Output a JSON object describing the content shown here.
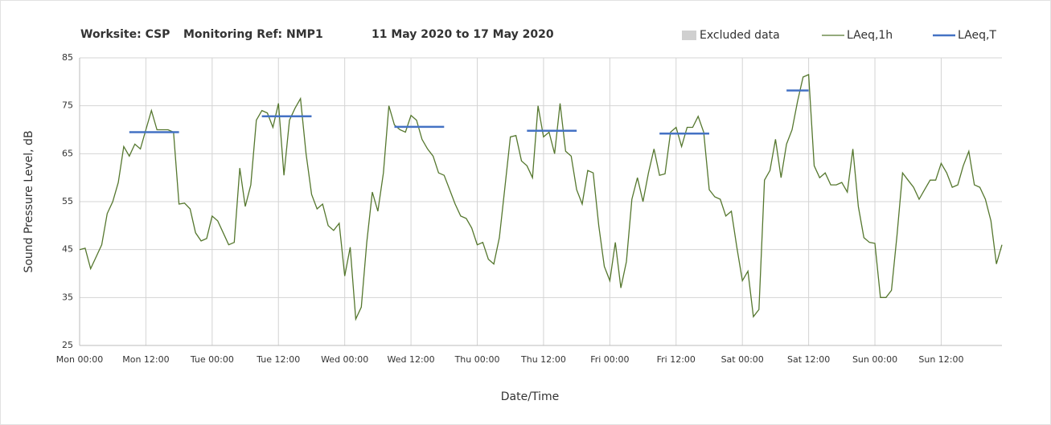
{
  "chart_data": {
    "type": "line",
    "title": [
      "Worksite: CSP",
      "Monitoring Ref: NMP1",
      "11 May 2020 to 17 May 2020"
    ],
    "xlabel": "Date/Time",
    "ylabel": "Sound Pressure Level, dB",
    "excluded": {
      "name": "Excluded data",
      "color": "#d0d0d0"
    },
    "x": [
      0,
      1,
      2,
      3,
      4,
      5,
      6,
      7,
      8,
      9,
      10,
      11,
      12,
      13,
      14,
      15,
      16,
      17,
      18,
      19,
      20,
      21,
      22,
      23,
      24,
      25,
      26,
      27,
      28,
      29,
      30,
      31,
      32,
      33,
      34,
      35,
      36,
      37,
      38,
      39,
      40,
      41,
      42,
      43,
      44,
      45,
      46,
      47,
      48,
      49,
      50,
      51,
      52,
      53,
      54,
      55,
      56,
      57,
      58,
      59,
      60,
      61,
      62,
      63,
      64,
      65,
      66,
      67,
      68,
      69,
      70,
      71,
      72,
      73,
      74,
      75,
      76,
      77,
      78,
      79,
      80,
      81,
      82,
      83,
      84,
      85,
      86,
      87,
      88,
      89,
      90,
      91,
      92,
      93,
      94,
      95,
      96,
      97,
      98,
      99,
      100,
      101,
      102,
      103,
      104,
      105,
      106,
      107,
      108,
      109,
      110,
      111,
      112,
      113,
      114,
      115,
      116,
      117,
      118,
      119,
      120,
      121,
      122,
      123,
      124,
      125,
      126,
      127,
      128,
      129,
      130,
      131,
      132,
      133,
      134,
      135,
      136,
      137,
      138,
      139,
      140,
      141,
      142,
      143,
      144,
      145,
      146,
      147,
      148,
      149,
      150,
      151,
      152,
      153,
      154,
      155,
      156,
      157,
      158,
      159,
      160,
      161,
      162,
      163,
      164,
      165,
      166,
      167
    ],
    "series": [
      {
        "name": "LAeq,1h",
        "color": "#55772e",
        "values": [
          45,
          45.3,
          41,
          43.5,
          46,
          52.5,
          55,
          59,
          66.5,
          64.5,
          67,
          66,
          70,
          74,
          70,
          70,
          70,
          69.5,
          54.5,
          54.7,
          53.5,
          48.5,
          46.8,
          47.3,
          52,
          51,
          48.5,
          46,
          46.5,
          62,
          54,
          58.5,
          72,
          74,
          73.5,
          70.5,
          75.5,
          60.5,
          72,
          74.5,
          76.5,
          65,
          56.5,
          53.5,
          54.5,
          50,
          49,
          50.5,
          39.5,
          45.5,
          30.5,
          33,
          46.5,
          57,
          53,
          61,
          75,
          71,
          70,
          69.5,
          73,
          72,
          68,
          66,
          64.5,
          61,
          60.5,
          57.5,
          54.5,
          52,
          51.5,
          49.5,
          46,
          46.5,
          43,
          42,
          47.5,
          58,
          68.5,
          68.8,
          63.5,
          62.5,
          60,
          75,
          68.5,
          69.5,
          65,
          75.5,
          65.5,
          64.5,
          57.5,
          54.5,
          61.5,
          61,
          50,
          41.5,
          38.5,
          46.5,
          37,
          42.5,
          55.5,
          60,
          55,
          61,
          66,
          60.5,
          60.8,
          69.5,
          70.5,
          66.5,
          70.5,
          70.5,
          72.8,
          69.5,
          57.5,
          56,
          55.5,
          52,
          53,
          45.5,
          38.5,
          40.5,
          31,
          32.5,
          59.5,
          61.5,
          68,
          60,
          67,
          70,
          76,
          81,
          81.5,
          62.5,
          60,
          61,
          58.5,
          58.5,
          59,
          57,
          66,
          54,
          47.5,
          46.5,
          46.3,
          35,
          35,
          36.5,
          48,
          61,
          59.5,
          58,
          55.5,
          57.5,
          59.5,
          59.5,
          63,
          61,
          58,
          58.5,
          62.5,
          65.5,
          58.5,
          58,
          55.5,
          51,
          42,
          46
        ]
      },
      {
        "name": "LAeq,T",
        "color": "#4472c4",
        "segments": [
          {
            "start": 9,
            "end": 18,
            "value": 69.5
          },
          {
            "start": 33,
            "end": 42,
            "value": 72.8
          },
          {
            "start": 57,
            "end": 66,
            "value": 70.6
          },
          {
            "start": 81,
            "end": 90,
            "value": 69.8
          },
          {
            "start": 105,
            "end": 114,
            "value": 69.2
          },
          {
            "start": 128,
            "end": 132,
            "value": 78.2
          }
        ]
      }
    ],
    "xlim": [
      0,
      167
    ],
    "ylim": [
      25,
      85
    ],
    "xticks": [
      {
        "value": 0,
        "label": "Mon 00:00"
      },
      {
        "value": 12,
        "label": "Mon 12:00"
      },
      {
        "value": 24,
        "label": "Tue 00:00"
      },
      {
        "value": 36,
        "label": "Tue 12:00"
      },
      {
        "value": 48,
        "label": "Wed 00:00"
      },
      {
        "value": 60,
        "label": "Wed 12:00"
      },
      {
        "value": 72,
        "label": "Thu 00:00"
      },
      {
        "value": 84,
        "label": "Thu 12:00"
      },
      {
        "value": 96,
        "label": "Fri 00:00"
      },
      {
        "value": 108,
        "label": "Fri 12:00"
      },
      {
        "value": 120,
        "label": "Sat 00:00"
      },
      {
        "value": 132,
        "label": "Sat 12:00"
      },
      {
        "value": 144,
        "label": "Sun 00:00"
      },
      {
        "value": 156,
        "label": "Sun 12:00"
      }
    ],
    "yticks": [
      25,
      35,
      45,
      55,
      65,
      75,
      85
    ],
    "grid": true
  }
}
